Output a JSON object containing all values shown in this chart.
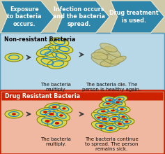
{
  "bg_color": "#cec9a8",
  "top_arrow_color": "#2e85aa",
  "top_arrows": [
    "Exposure\nto bacteria\noccurs.",
    "Infection occurs\nand the bacteria\nspread.",
    "Drug treatment\nis used."
  ],
  "nonresist_box_color": "#b8d8e8",
  "nonresist_border": "#5a9ab8",
  "nonresist_title": "Non-resistant Bacteria",
  "resist_box_color": "#f0b8a0",
  "resist_border": "#cc2200",
  "resist_title": "Drug Resistant Bacteria",
  "bacteria_fill": "#dcd84a",
  "bacteria_border": "#7a7a00",
  "ring_color": "#2288cc",
  "dot_color": "#cc1100",
  "dead_fill": "#c8c078",
  "dead_border": "#888848",
  "text_color": "#111111",
  "caption_nr1": "The bacteria\nmultiply.",
  "caption_nr2": "The bacteria die. The\nperson is healthy again.",
  "caption_dr1": "The bacteria\nmultiply.",
  "caption_dr2": "The bacteria continue\nto spread. The person\nremains sick.",
  "nr_single": [
    [
      20,
      82,
      14,
      6,
      0
    ]
  ],
  "nr_mid": [
    [
      68,
      88,
      16,
      7,
      15
    ],
    [
      83,
      91,
      15,
      7,
      -8
    ],
    [
      73,
      78,
      15,
      7,
      5
    ],
    [
      88,
      80,
      14,
      6,
      20
    ],
    [
      78,
      68,
      15,
      6,
      -5
    ],
    [
      92,
      70,
      13,
      6,
      10
    ],
    [
      65,
      74,
      13,
      6,
      -15
    ],
    [
      85,
      60,
      14,
      6,
      8
    ]
  ],
  "nr_dead": [
    [
      145,
      88,
      15,
      5,
      25
    ],
    [
      158,
      90,
      14,
      5,
      -5
    ],
    [
      152,
      82,
      14,
      5,
      35
    ],
    [
      165,
      83,
      13,
      5,
      10
    ],
    [
      148,
      74,
      14,
      5,
      -12
    ],
    [
      162,
      74,
      13,
      5,
      28
    ],
    [
      143,
      80,
      12,
      5,
      8
    ],
    [
      170,
      86,
      12,
      4,
      -22
    ],
    [
      156,
      68,
      13,
      5,
      18
    ]
  ],
  "dr_single": [
    [
      20,
      165,
      14,
      6,
      0
    ]
  ],
  "dr_mid": [
    [
      68,
      173,
      15,
      7,
      10
    ],
    [
      82,
      176,
      14,
      7,
      -8
    ],
    [
      74,
      163,
      15,
      7,
      5
    ],
    [
      88,
      165,
      13,
      6,
      20
    ],
    [
      78,
      153,
      14,
      6,
      -5
    ],
    [
      92,
      155,
      12,
      6,
      15
    ],
    [
      65,
      160,
      13,
      6,
      -10
    ]
  ],
  "dr_large": [
    [
      145,
      180,
      14,
      6,
      15
    ],
    [
      159,
      183,
      14,
      6,
      -5
    ],
    [
      172,
      177,
      13,
      6,
      20
    ],
    [
      150,
      170,
      14,
      6,
      5
    ],
    [
      164,
      170,
      13,
      6,
      -10
    ],
    [
      177,
      167,
      12,
      5,
      25
    ],
    [
      148,
      159,
      14,
      5,
      -8
    ],
    [
      162,
      158,
      13,
      5,
      10
    ],
    [
      175,
      156,
      12,
      5,
      5
    ],
    [
      155,
      148,
      13,
      5,
      -15
    ],
    [
      169,
      146,
      12,
      5,
      20
    ],
    [
      182,
      174,
      11,
      5,
      -5
    ],
    [
      142,
      168,
      12,
      5,
      30
    ],
    [
      158,
      143,
      12,
      5,
      8
    ],
    [
      172,
      142,
      11,
      5,
      -12
    ]
  ]
}
